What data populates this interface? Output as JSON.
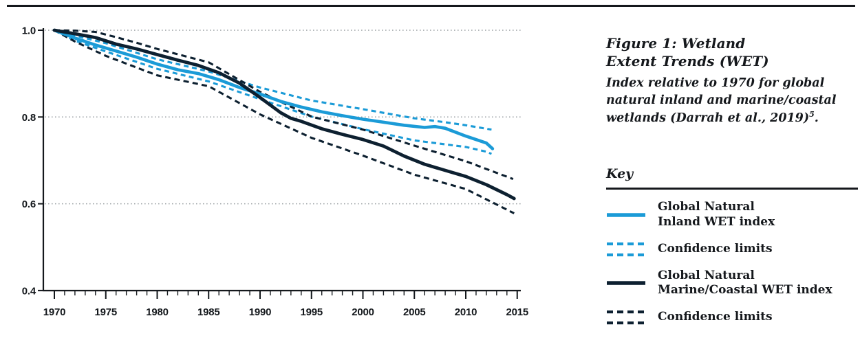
{
  "panel": {
    "title": "Figure 1: Wetland Extent Trends (WET)",
    "subtitle": "Index relative to 1970 for global natural inland and marine/coastal wetlands (Darrah et al., 2019)",
    "subtitle_superscript": "5",
    "subtitle_period": ".",
    "key_label": "Key",
    "legend": [
      {
        "label_line1": "Global Natural",
        "label_line2": "Inland WET index",
        "style": "solid",
        "color": "#1b9bd7"
      },
      {
        "label_line1": "Confidence limits",
        "label_line2": "",
        "style": "dashed",
        "color": "#1b9bd7"
      },
      {
        "label_line1": "Global Natural",
        "label_line2": "Marine/Coastal WET index",
        "style": "solid",
        "color": "#0d2030"
      },
      {
        "label_line1": "Confidence limits",
        "label_line2": "",
        "style": "dashed",
        "color": "#0d2030"
      }
    ]
  },
  "chart_data": {
    "type": "line",
    "title": "Wetland Extent Trends (WET) index relative to 1970",
    "xlabel": "",
    "ylabel": "",
    "x_range": [
      1969.2,
      2015.8
    ],
    "y_range": [
      0.4,
      1.0
    ],
    "x_major_ticks": [
      1970,
      1975,
      1980,
      1985,
      1990,
      1995,
      2000,
      2005,
      2010,
      2015
    ],
    "x_minor_tick_interval": 1,
    "y_ticks": [
      "1.0",
      "0.8",
      "0.6",
      "0.4"
    ],
    "grid": "dotted horizontal gridlines at 1.0, 0.8 and 0.6; solid baseline at 0.4",
    "legend_position": "right panel",
    "series": [
      {
        "name": "Inland WET confidence upper limit",
        "color": "#1b9bd7",
        "style": "dashed",
        "width": 3.1,
        "dash": "7 5.2",
        "points": [
          [
            1970,
            1.0
          ],
          [
            1972,
            0.988
          ],
          [
            1975,
            0.97
          ],
          [
            1980,
            0.933
          ],
          [
            1985,
            0.905
          ],
          [
            1990,
            0.868
          ],
          [
            1995,
            0.838
          ],
          [
            2000,
            0.818
          ],
          [
            2005,
            0.797
          ],
          [
            2008,
            0.788
          ],
          [
            2010,
            0.781
          ],
          [
            2012,
            0.773
          ],
          [
            2012.5,
            0.771
          ]
        ]
      },
      {
        "name": "Inland WET confidence lower limit",
        "color": "#1b9bd7",
        "style": "dashed",
        "width": 3.1,
        "dash": "7 5.2",
        "points": [
          [
            1970,
            1.0
          ],
          [
            1972,
            0.976
          ],
          [
            1975,
            0.951
          ],
          [
            1980,
            0.911
          ],
          [
            1985,
            0.882
          ],
          [
            1990,
            0.841
          ],
          [
            1995,
            0.801
          ],
          [
            2000,
            0.772
          ],
          [
            2005,
            0.746
          ],
          [
            2008,
            0.737
          ],
          [
            2010,
            0.731
          ],
          [
            2012,
            0.72
          ],
          [
            2012.5,
            0.715
          ]
        ]
      },
      {
        "name": "Marine/Coastal WET confidence upper limit",
        "color": "#0d2030",
        "style": "dashed",
        "width": 3.1,
        "dash": "8 5.5",
        "points": [
          [
            1970,
            1.0
          ],
          [
            1972,
            0.999
          ],
          [
            1974,
            0.996
          ],
          [
            1976,
            0.984
          ],
          [
            1978,
            0.971
          ],
          [
            1980,
            0.957
          ],
          [
            1985,
            0.926
          ],
          [
            1990,
            0.858
          ],
          [
            1995,
            0.801
          ],
          [
            2000,
            0.771
          ],
          [
            2005,
            0.734
          ],
          [
            2010,
            0.698
          ],
          [
            2014.6,
            0.657
          ]
        ]
      },
      {
        "name": "Marine/Coastal WET confidence lower limit",
        "color": "#0d2030",
        "style": "dashed",
        "width": 3.1,
        "dash": "8 5.5",
        "points": [
          [
            1970,
            1.0
          ],
          [
            1972,
            0.974
          ],
          [
            1975,
            0.941
          ],
          [
            1980,
            0.896
          ],
          [
            1985,
            0.871
          ],
          [
            1990,
            0.806
          ],
          [
            1995,
            0.752
          ],
          [
            2000,
            0.711
          ],
          [
            2005,
            0.667
          ],
          [
            2010,
            0.634
          ],
          [
            2014.7,
            0.578
          ]
        ]
      },
      {
        "name": "Global Natural Inland WET index",
        "color": "#1b9bd7",
        "style": "solid",
        "width": 4.6,
        "points": [
          [
            1970,
            1.0
          ],
          [
            1972,
            0.982
          ],
          [
            1974,
            0.966
          ],
          [
            1976,
            0.952
          ],
          [
            1978,
            0.938
          ],
          [
            1980,
            0.922
          ],
          [
            1982,
            0.909
          ],
          [
            1984,
            0.9
          ],
          [
            1986,
            0.886
          ],
          [
            1988,
            0.868
          ],
          [
            1990,
            0.853
          ],
          [
            1992,
            0.836
          ],
          [
            1994,
            0.823
          ],
          [
            1996,
            0.812
          ],
          [
            1998,
            0.803
          ],
          [
            2000,
            0.795
          ],
          [
            2002,
            0.788
          ],
          [
            2004,
            0.781
          ],
          [
            2006,
            0.776
          ],
          [
            2007,
            0.778
          ],
          [
            2008,
            0.774
          ],
          [
            2010,
            0.756
          ],
          [
            2012,
            0.74
          ],
          [
            2012.6,
            0.727
          ]
        ]
      },
      {
        "name": "Global Natural Marine/Coastal WET index",
        "color": "#0d2030",
        "style": "solid",
        "width": 4.8,
        "points": [
          [
            1970,
            1.0
          ],
          [
            1972,
            0.992
          ],
          [
            1974,
            0.983
          ],
          [
            1976,
            0.968
          ],
          [
            1978,
            0.957
          ],
          [
            1980,
            0.944
          ],
          [
            1982,
            0.931
          ],
          [
            1984,
            0.919
          ],
          [
            1986,
            0.902
          ],
          [
            1988,
            0.878
          ],
          [
            1990,
            0.845
          ],
          [
            1992,
            0.81
          ],
          [
            1993,
            0.797
          ],
          [
            1994,
            0.79
          ],
          [
            1996,
            0.773
          ],
          [
            1998,
            0.76
          ],
          [
            2000,
            0.748
          ],
          [
            2002,
            0.733
          ],
          [
            2004,
            0.71
          ],
          [
            2006,
            0.691
          ],
          [
            2008,
            0.677
          ],
          [
            2010,
            0.663
          ],
          [
            2012,
            0.644
          ],
          [
            2014,
            0.621
          ],
          [
            2014.7,
            0.612
          ]
        ]
      }
    ]
  }
}
